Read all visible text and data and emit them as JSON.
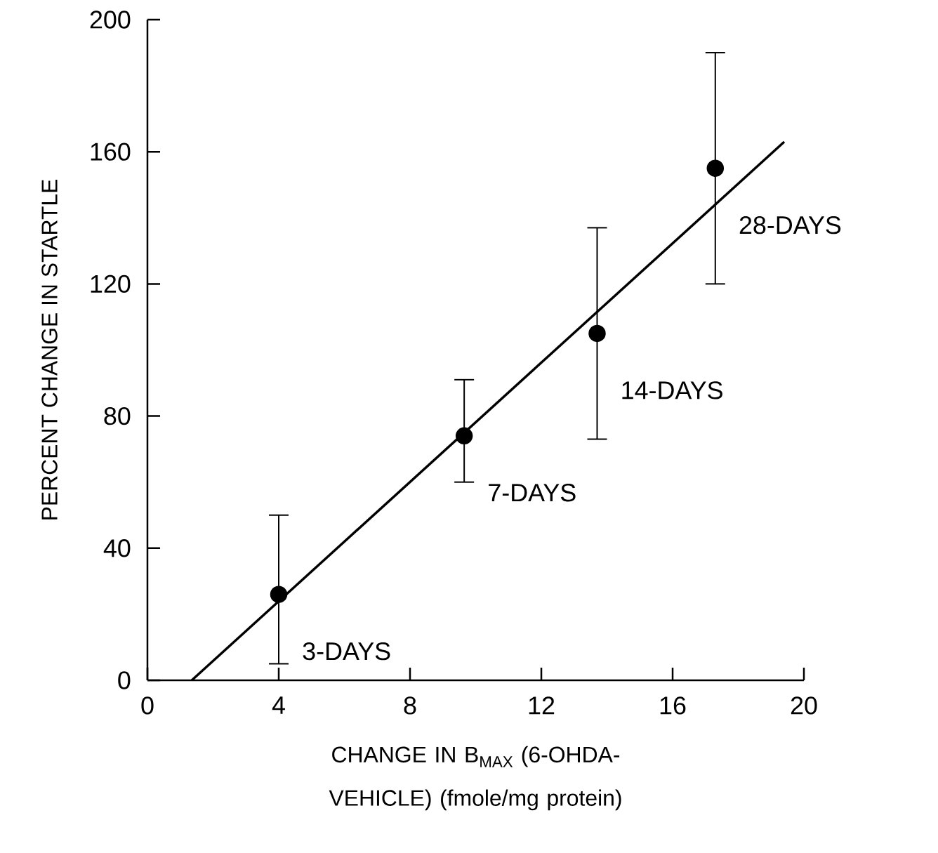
{
  "chart_data": {
    "type": "scatter",
    "xlabel": "CHANGE IN B$_{MAX}$ (6-OHDA-VEHICLE) (fmole/mg protein)",
    "ylabel": "PERCENT CHANGE IN STARTLE",
    "series": [
      {
        "color": "#000000",
        "marker": "circle",
        "x": [
          4.0,
          9.65,
          13.7,
          17.3
        ],
        "values": [
          26,
          74,
          105,
          155
        ],
        "errors": [
          [
            5,
            50
          ],
          [
            60,
            91
          ],
          [
            73,
            137
          ],
          [
            120,
            190
          ]
        ]
      },
      {
        "type": "line",
        "color": "#000000",
        "marker": "none",
        "line_style": "solid",
        "x": [
          1.35,
          19.4
        ],
        "values": [
          0,
          163
        ]
      }
    ],
    "annotations": [
      {
        "text": "3-DAYS",
        "x": 4.0,
        "y": 26
      },
      {
        "text": "7-DAYS",
        "x": 9.65,
        "y": 74
      },
      {
        "text": "14-DAYS",
        "x": 13.7,
        "y": 105
      },
      {
        "text": "28-DAYS",
        "x": 17.3,
        "y": 155
      }
    ],
    "xlim": [
      0,
      20
    ],
    "ylim": [
      0,
      200
    ],
    "xticks": [
      0,
      4,
      8,
      12,
      16,
      20
    ],
    "yticks": [
      0,
      40,
      80,
      120,
      160,
      200
    ],
    "grid": false
  }
}
